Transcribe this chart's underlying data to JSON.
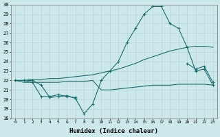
{
  "xlabel": "Humidex (Indice chaleur)",
  "ylabel": "",
  "background_color": "#cce8ea",
  "grid_color": "#b8d8da",
  "line_color": "#1a6b6b",
  "x": [
    0,
    1,
    2,
    3,
    4,
    5,
    6,
    7,
    8,
    9,
    10,
    11,
    12,
    13,
    14,
    15,
    16,
    17,
    18,
    19,
    20,
    21,
    22,
    23
  ],
  "series1": [
    22.0,
    22.0,
    22.0,
    21.5,
    20.2,
    20.3,
    20.4,
    20.1,
    18.5,
    19.5,
    22.0,
    23.0,
    24.0,
    26.0,
    27.5,
    29.0,
    29.8,
    29.8,
    28.0,
    27.5,
    25.5,
    23.0,
    23.2,
    21.5
  ],
  "series2": [
    22.0,
    22.0,
    21.8,
    20.3,
    20.3,
    20.5,
    20.3,
    20.2,
    null,
    null,
    null,
    null,
    null,
    null,
    null,
    null,
    null,
    null,
    null,
    null,
    23.8,
    23.2,
    23.5,
    21.8
  ],
  "series3": [
    22.0,
    22.0,
    22.1,
    22.1,
    22.2,
    22.2,
    22.3,
    22.4,
    22.5,
    22.6,
    22.8,
    23.0,
    23.2,
    23.5,
    23.8,
    24.2,
    24.5,
    24.8,
    25.1,
    25.3,
    25.5,
    25.6,
    25.6,
    25.5
  ],
  "series4": [
    22.0,
    21.8,
    21.8,
    21.8,
    21.8,
    21.8,
    21.9,
    21.9,
    21.9,
    22.0,
    21.0,
    21.0,
    21.1,
    21.2,
    21.3,
    21.4,
    21.5,
    21.5,
    21.5,
    21.6,
    21.6,
    21.6,
    21.6,
    21.5
  ],
  "ylim": [
    18,
    30
  ],
  "yticks": [
    18,
    19,
    20,
    21,
    22,
    23,
    24,
    25,
    26,
    27,
    28,
    29,
    30
  ],
  "xticks": [
    0,
    1,
    2,
    3,
    4,
    5,
    6,
    7,
    8,
    9,
    10,
    11,
    12,
    13,
    14,
    15,
    16,
    17,
    18,
    19,
    20,
    21,
    22,
    23
  ]
}
